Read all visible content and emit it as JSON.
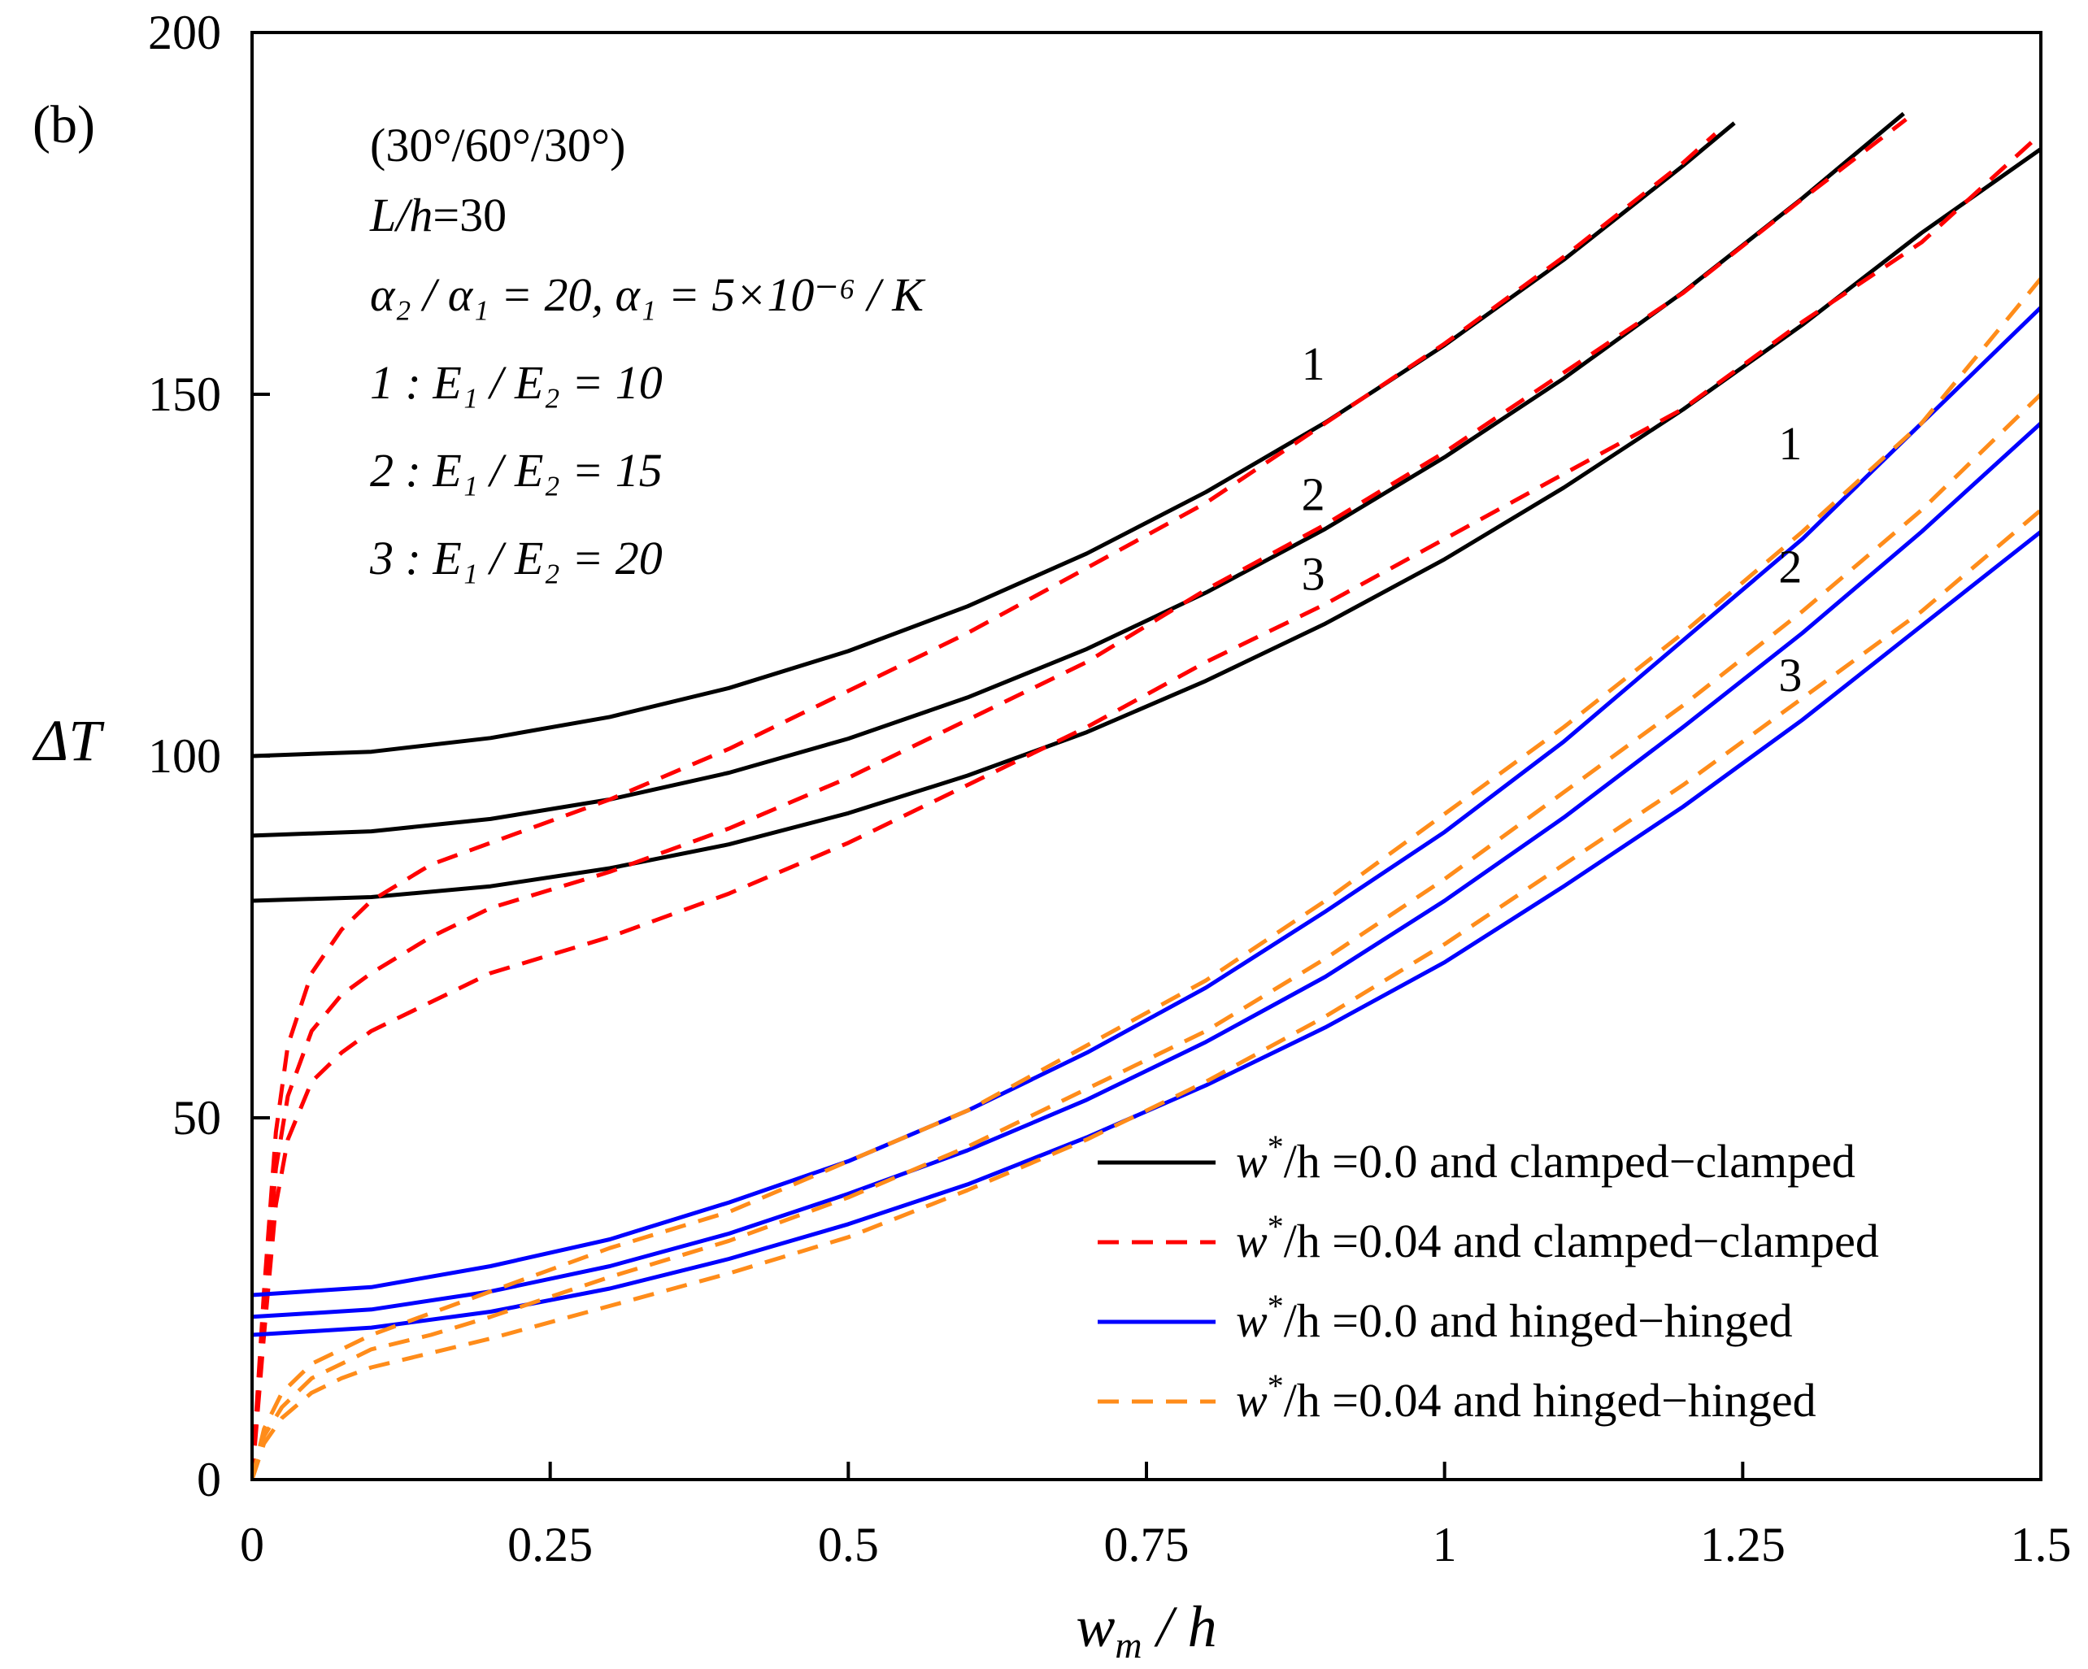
{
  "chart_data": {
    "type": "line",
    "panel_label": "(b)",
    "title": "",
    "xlabel_var": "w",
    "xlabel_sub": "m",
    "xlabel_rest": " / h",
    "ylabel": "ΔT",
    "xlim": [
      0,
      1.5
    ],
    "ylim": [
      0,
      200
    ],
    "x_ticks": [
      0,
      0.25,
      0.5,
      0.75,
      1,
      1.25,
      1.5
    ],
    "x_tick_labels": [
      "0",
      "0.25",
      "0.5",
      "0.75",
      "1",
      "1.25",
      "1.5"
    ],
    "y_ticks": [
      0,
      50,
      100,
      150,
      200
    ],
    "y_tick_labels": [
      "0",
      "50",
      "100",
      "150",
      "200"
    ],
    "annotations": {
      "layup": "(30°/60°/30°)",
      "slenderness_var": "L/h",
      "slenderness_val": "=30",
      "alpha_ratio": "α₂ / α₁ = 20, α₁ = 5×10⁻⁶ / K",
      "cases": [
        {
          "label": "1 : E₁ / E₂ = 10"
        },
        {
          "label": "2 : E₁ / E₂ = 15"
        },
        {
          "label": "3 : E₁ / E₂ = 20"
        }
      ]
    },
    "curve_labels": [
      {
        "text": "1",
        "x": 0.88,
        "y": 152
      },
      {
        "text": "2",
        "x": 0.88,
        "y": 134
      },
      {
        "text": "3",
        "x": 0.88,
        "y": 123
      },
      {
        "text": "1",
        "x": 1.28,
        "y": 141
      },
      {
        "text": "2",
        "x": 1.28,
        "y": 124
      },
      {
        "text": "3",
        "x": 1.28,
        "y": 109
      }
    ],
    "legend_position": "bottom-right",
    "legend": [
      {
        "var": "w",
        "sup": "*",
        "rest": "/h =0.0 and clamped−clamped",
        "color": "#000000",
        "dash": false
      },
      {
        "var": "w",
        "sup": "*",
        "rest": "/h =0.04 and clamped−clamped",
        "color": "#ff0000",
        "dash": true
      },
      {
        "var": "w",
        "sup": "*",
        "rest": "/h =0.0 and hinged−hinged",
        "color": "#0000ff",
        "dash": false
      },
      {
        "var": "w",
        "sup": "*",
        "rest": "/h =0.04 and hinged−hinged",
        "color": "#ff8c1a",
        "dash": true
      }
    ],
    "series": [
      {
        "name": "clamped perfect 1",
        "group": 0,
        "x": [
          0,
          0.1,
          0.2,
          0.3,
          0.4,
          0.5,
          0.6,
          0.7,
          0.8,
          0.9,
          1.0,
          1.1,
          1.2,
          1.243
        ],
        "y": [
          100,
          100.6,
          102.5,
          105.4,
          109.4,
          114.5,
          120.7,
          128,
          136.5,
          146.1,
          156.8,
          168.6,
          181.6,
          187.5
        ]
      },
      {
        "name": "clamped perfect 2",
        "group": 0,
        "x": [
          0,
          0.1,
          0.2,
          0.3,
          0.4,
          0.5,
          0.6,
          0.7,
          0.8,
          0.9,
          1.0,
          1.1,
          1.2,
          1.3,
          1.385
        ],
        "y": [
          89,
          89.6,
          91.3,
          94.0,
          97.7,
          102.4,
          108.1,
          114.8,
          122.6,
          131.4,
          141.3,
          152.2,
          164.1,
          177.1,
          188.8
        ]
      },
      {
        "name": "clamped perfect 3",
        "group": 0,
        "x": [
          0,
          0.1,
          0.2,
          0.3,
          0.4,
          0.5,
          0.6,
          0.7,
          0.8,
          0.9,
          1.0,
          1.1,
          1.2,
          1.3,
          1.4,
          1.5
        ],
        "y": [
          80,
          80.5,
          82.0,
          84.5,
          87.8,
          92.1,
          97.3,
          103.3,
          110.4,
          118.3,
          127.2,
          137.1,
          147.9,
          159.6,
          172.3,
          183.9
        ]
      },
      {
        "name": "clamped imperfect 1",
        "group": 1,
        "x": [
          0,
          0.01,
          0.02,
          0.03,
          0.05,
          0.075,
          0.1,
          0.15,
          0.2,
          0.3,
          0.4,
          0.5,
          0.6,
          0.7,
          0.8,
          0.9,
          1.0,
          1.1,
          1.2,
          1.227
        ],
        "y": [
          0,
          26,
          48,
          60,
          70,
          76,
          80,
          85,
          88,
          94,
          101,
          109,
          117,
          126,
          135,
          146,
          157,
          169,
          182,
          186
        ]
      },
      {
        "name": "clamped imperfect 2",
        "group": 1,
        "x": [
          0,
          0.01,
          0.02,
          0.03,
          0.05,
          0.075,
          0.1,
          0.15,
          0.2,
          0.3,
          0.4,
          0.5,
          0.6,
          0.7,
          0.8,
          0.9,
          1.0,
          1.1,
          1.2,
          1.3,
          1.387
        ],
        "y": [
          0,
          23,
          43,
          53,
          62,
          67,
          70,
          75,
          79,
          84,
          90,
          97,
          105,
          113,
          123,
          132,
          142,
          153,
          164,
          177,
          188
        ]
      },
      {
        "name": "clamped imperfect 3",
        "group": 1,
        "x": [
          0,
          0.01,
          0.02,
          0.03,
          0.05,
          0.075,
          0.1,
          0.15,
          0.2,
          0.3,
          0.4,
          0.5,
          0.6,
          0.7,
          0.8,
          0.9,
          1.0,
          1.1,
          1.2,
          1.3,
          1.4,
          1.5
        ],
        "y": [
          0,
          20,
          38,
          47,
          55,
          59,
          62,
          66,
          70,
          75,
          81,
          88,
          96,
          104,
          113,
          121,
          130,
          139,
          148,
          160,
          171,
          186
        ]
      },
      {
        "name": "hinged perfect 1",
        "group": 2,
        "x": [
          0,
          0.1,
          0.2,
          0.3,
          0.4,
          0.5,
          0.6,
          0.7,
          0.8,
          0.9,
          1.0,
          1.1,
          1.2,
          1.3,
          1.4,
          1.5
        ],
        "y": [
          25.5,
          26.6,
          29.5,
          33.2,
          38.3,
          44.0,
          51.0,
          59.0,
          68.0,
          78.5,
          89.5,
          102,
          116,
          130,
          146,
          162
        ]
      },
      {
        "name": "hinged perfect 2",
        "group": 2,
        "x": [
          0,
          0.1,
          0.2,
          0.3,
          0.4,
          0.5,
          0.6,
          0.7,
          0.8,
          0.9,
          1.0,
          1.1,
          1.2,
          1.3,
          1.4,
          1.5
        ],
        "y": [
          22.5,
          23.5,
          26.0,
          29.5,
          34.0,
          39.5,
          45.5,
          52.5,
          60.5,
          69.5,
          80.0,
          91.5,
          104,
          117,
          131,
          146
        ]
      },
      {
        "name": "hinged perfect 3",
        "group": 2,
        "x": [
          0,
          0.1,
          0.2,
          0.3,
          0.4,
          0.5,
          0.6,
          0.7,
          0.8,
          0.9,
          1.0,
          1.1,
          1.2,
          1.3,
          1.4,
          1.5
        ],
        "y": [
          20.0,
          21.0,
          23.2,
          26.4,
          30.5,
          35.3,
          40.8,
          47.3,
          54.5,
          62.5,
          71.5,
          82.0,
          93.0,
          105,
          118,
          131
        ]
      },
      {
        "name": "hinged imperfect 1",
        "group": 3,
        "x": [
          0,
          0.01,
          0.025,
          0.05,
          0.075,
          0.1,
          0.15,
          0.2,
          0.3,
          0.4,
          0.5,
          0.6,
          0.7,
          0.8,
          0.9,
          1.0,
          1.1,
          1.2,
          1.3,
          1.4,
          1.5
        ],
        "y": [
          0,
          7,
          12,
          16,
          18,
          20,
          23,
          26,
          32,
          37,
          44,
          51,
          60,
          69,
          80,
          92,
          104,
          117,
          131,
          146,
          166
        ]
      },
      {
        "name": "hinged imperfect 2",
        "group": 3,
        "x": [
          0,
          0.01,
          0.025,
          0.05,
          0.075,
          0.1,
          0.15,
          0.2,
          0.3,
          0.4,
          0.5,
          0.6,
          0.7,
          0.8,
          0.9,
          1.0,
          1.1,
          1.2,
          1.3,
          1.4,
          1.5
        ],
        "y": [
          0,
          6,
          10,
          14,
          16,
          18,
          20,
          22.5,
          28,
          33,
          39,
          46,
          54,
          62,
          72,
          83,
          95,
          107,
          120,
          134,
          150
        ]
      },
      {
        "name": "hinged imperfect 3",
        "group": 3,
        "x": [
          0,
          0.01,
          0.025,
          0.05,
          0.075,
          0.1,
          0.15,
          0.2,
          0.3,
          0.4,
          0.5,
          0.6,
          0.7,
          0.8,
          0.9,
          1.0,
          1.1,
          1.2,
          1.3,
          1.4,
          1.5
        ],
        "y": [
          0,
          5,
          8.5,
          12,
          14,
          15.5,
          17.5,
          19.5,
          24,
          28.5,
          33.5,
          40,
          47,
          55,
          64,
          74,
          85,
          96,
          108,
          120,
          134
        ]
      }
    ]
  }
}
